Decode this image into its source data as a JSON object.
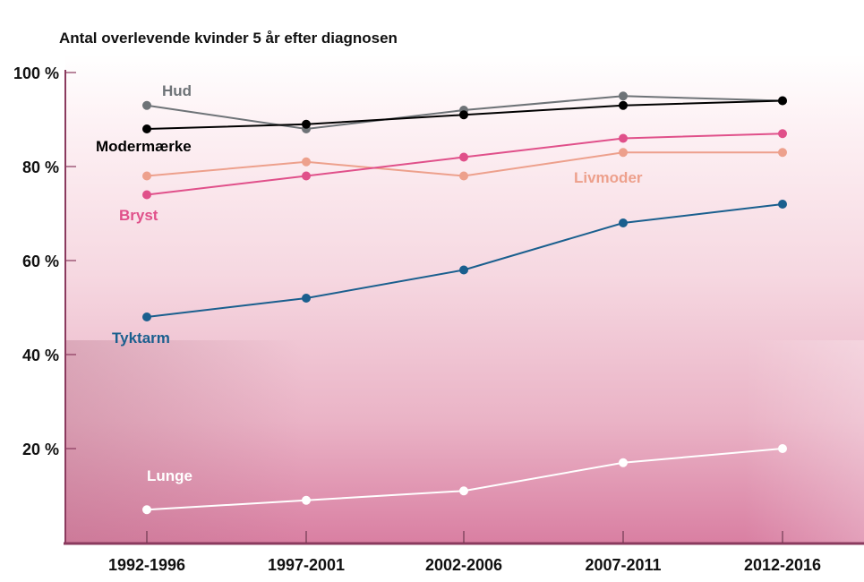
{
  "chart_data": {
    "type": "line",
    "title": "Antal overlevende kvinder 5 år efter diagnosen",
    "xlabel": "",
    "ylabel": "",
    "categories": [
      "1992-1996",
      "1997-2001",
      "2002-2006",
      "2007-2011",
      "2012-2016"
    ],
    "ylim": [
      0,
      100
    ],
    "yticks": [
      20,
      40,
      60,
      80,
      100
    ],
    "ytick_labels": [
      "20 %",
      "40 %",
      "60 %",
      "80 %",
      "100 %"
    ],
    "grid": false,
    "series": [
      {
        "name": "Hud",
        "color": "#6e7377",
        "values": [
          93,
          88,
          92,
          95,
          94
        ]
      },
      {
        "name": "Modermærke",
        "color": "#000000",
        "values": [
          88,
          89,
          91,
          93,
          94
        ]
      },
      {
        "name": "Livmoder",
        "color": "#eda08c",
        "values": [
          78,
          81,
          78,
          83,
          83
        ]
      },
      {
        "name": "Bryst",
        "color": "#e0508a",
        "values": [
          74,
          78,
          82,
          86,
          87
        ]
      },
      {
        "name": "Tyktarm",
        "color": "#1a5f8e",
        "values": [
          48,
          52,
          58,
          68,
          72
        ]
      },
      {
        "name": "Lunge",
        "color": "#ffffff",
        "values": [
          7,
          9,
          11,
          17,
          20
        ]
      }
    ]
  }
}
